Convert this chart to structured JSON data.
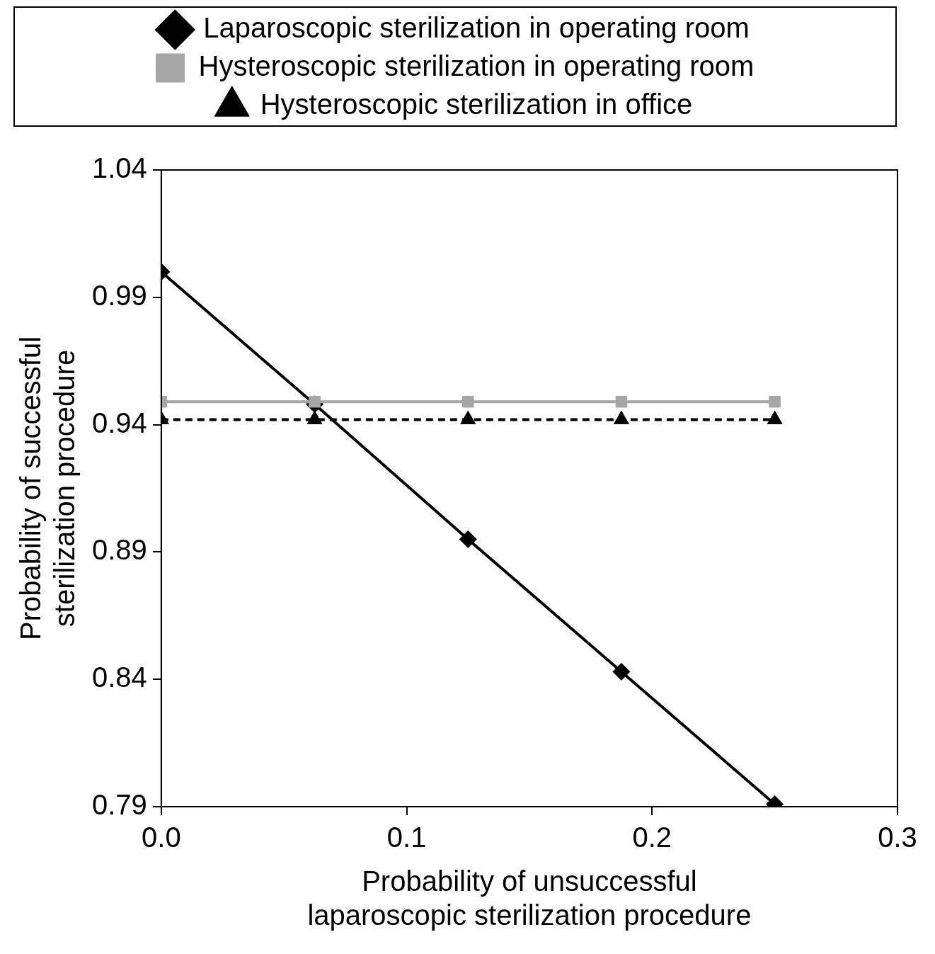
{
  "chart_data": {
    "type": "line",
    "xlabel": "Probability of unsuccessful laparoscopic sterilization procedure",
    "ylabel": "Probability of successful sterilization procedure",
    "x": [
      0,
      0.0625,
      0.125,
      0.1875,
      0.25
    ],
    "xlim": [
      0,
      0.3
    ],
    "xticks": [
      {
        "value": 0,
        "label": "0.0"
      },
      0.1,
      0.2,
      0.3
    ],
    "ylim": [
      0.79,
      1.04
    ],
    "yticks": [
      0.79,
      0.84,
      0.89,
      0.94,
      0.99,
      1.04
    ],
    "grid": false,
    "legend": "top",
    "series": [
      {
        "name": "Laparoscopic sterilization in operating room",
        "color": "#000000",
        "marker": "diamond",
        "line_style": "solid",
        "values": [
          1.0,
          0.948,
          0.895,
          0.843,
          0.791
        ]
      },
      {
        "name": "Hysteroscopic sterilization in operating room",
        "color": "#a6a6a6",
        "marker": "square",
        "line_style": "solid",
        "values": [
          0.949,
          0.949,
          0.949,
          0.949,
          0.949
        ]
      },
      {
        "name": "Hysteroscopic sterilization in office",
        "color": "#000000",
        "marker": "triangle",
        "line_style": "dashed",
        "values": [
          0.942,
          0.942,
          0.942,
          0.942,
          0.942
        ]
      }
    ]
  }
}
